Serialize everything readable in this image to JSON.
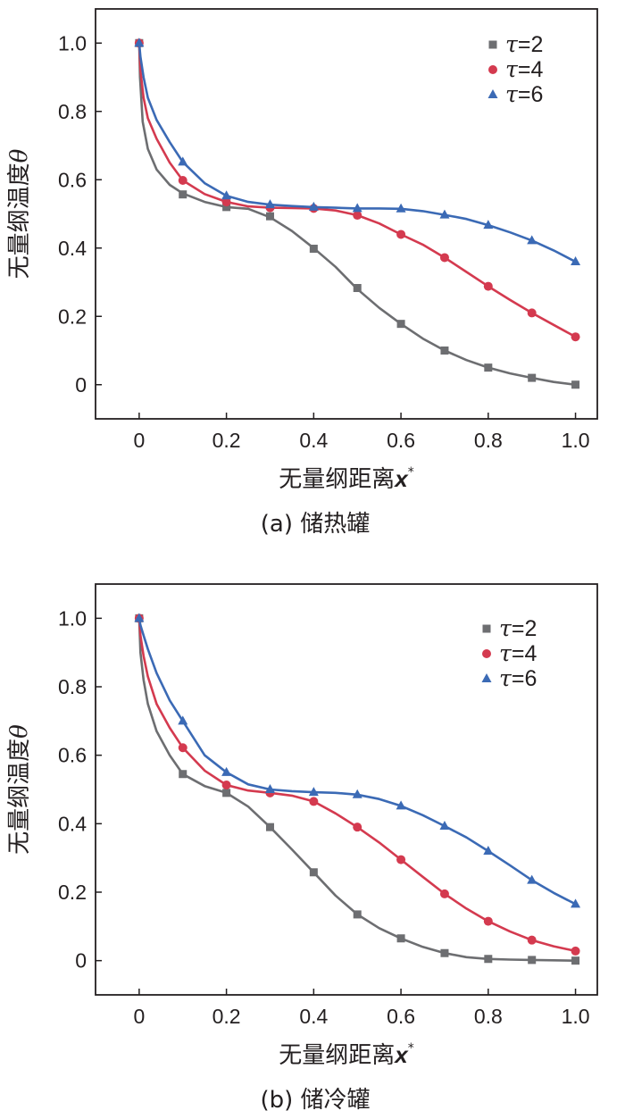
{
  "chart_data": [
    {
      "type": "line",
      "caption": "(a) 储热罐",
      "xlabel": "无量纲距离",
      "xlabel_var": "x",
      "xlabel_sup": "*",
      "ylabel": "无量纲温度",
      "ylabel_var": "θ",
      "xlim": [
        -0.1,
        1.05
      ],
      "ylim": [
        -0.1,
        1.1
      ],
      "xticks": [
        0,
        0.2,
        0.4,
        0.6,
        0.8,
        1.0
      ],
      "xtick_labels": [
        "0",
        "0.2",
        "0.4",
        "0.6",
        "0.8",
        "1.0"
      ],
      "yticks": [
        0,
        0.2,
        0.4,
        0.6,
        0.8,
        1.0
      ],
      "ytick_labels": [
        "0",
        "0.2",
        "0.4",
        "0.6",
        "0.8",
        "1.0"
      ],
      "legend_position": "top-right",
      "series": [
        {
          "name": "τ=2",
          "name_var": "τ",
          "name_val": "=2",
          "color": "#6d6e71",
          "marker": "square",
          "curve_x": [
            0,
            0.002,
            0.008,
            0.02,
            0.04,
            0.07,
            0.1,
            0.15,
            0.2,
            0.25,
            0.3,
            0.35,
            0.4,
            0.45,
            0.5,
            0.55,
            0.6,
            0.65,
            0.7,
            0.75,
            0.8,
            0.85,
            0.9,
            0.95,
            1.0
          ],
          "curve_y": [
            1.0,
            0.9,
            0.77,
            0.69,
            0.63,
            0.585,
            0.56,
            0.535,
            0.52,
            0.515,
            0.49,
            0.45,
            0.4,
            0.345,
            0.28,
            0.225,
            0.178,
            0.135,
            0.1,
            0.072,
            0.05,
            0.033,
            0.02,
            0.008,
            0.0
          ],
          "marker_x": [
            0,
            0.1,
            0.2,
            0.3,
            0.4,
            0.5,
            0.6,
            0.7,
            0.8,
            0.9,
            1.0
          ],
          "marker_y": [
            1.0,
            0.557,
            0.52,
            0.493,
            0.398,
            0.283,
            0.178,
            0.1,
            0.05,
            0.02,
            0.0
          ]
        },
        {
          "name": "τ=4",
          "name_var": "τ",
          "name_val": "=4",
          "color": "#d43a4f",
          "marker": "circle",
          "curve_x": [
            0,
            0.003,
            0.01,
            0.02,
            0.04,
            0.07,
            0.1,
            0.15,
            0.2,
            0.25,
            0.3,
            0.35,
            0.4,
            0.45,
            0.5,
            0.55,
            0.6,
            0.65,
            0.7,
            0.75,
            0.8,
            0.85,
            0.9,
            0.95,
            1.0
          ],
          "curve_y": [
            1.0,
            0.92,
            0.84,
            0.78,
            0.72,
            0.65,
            0.598,
            0.558,
            0.535,
            0.522,
            0.518,
            0.517,
            0.516,
            0.51,
            0.496,
            0.472,
            0.44,
            0.41,
            0.372,
            0.33,
            0.288,
            0.248,
            0.21,
            0.175,
            0.14
          ]
        },
        {
          "name": "τ=6",
          "name_var": "τ",
          "name_val": "=6",
          "color": "#3b6ab5",
          "marker": "triangle",
          "curve_x": [
            0,
            0.003,
            0.01,
            0.02,
            0.04,
            0.07,
            0.1,
            0.15,
            0.2,
            0.25,
            0.3,
            0.35,
            0.4,
            0.45,
            0.5,
            0.55,
            0.6,
            0.65,
            0.7,
            0.75,
            0.8,
            0.85,
            0.9,
            0.95,
            1.0
          ],
          "curve_y": [
            1.0,
            0.96,
            0.9,
            0.84,
            0.775,
            0.71,
            0.652,
            0.59,
            0.553,
            0.535,
            0.527,
            0.523,
            0.52,
            0.518,
            0.516,
            0.516,
            0.515,
            0.508,
            0.497,
            0.485,
            0.467,
            0.446,
            0.422,
            0.393,
            0.36
          ]
        }
      ]
    },
    {
      "type": "line",
      "caption": "(b) 储冷罐",
      "xlabel": "无量纲距离",
      "xlabel_var": "x",
      "xlabel_sup": "*",
      "ylabel": "无量纲温度",
      "ylabel_var": "θ",
      "xlim": [
        -0.1,
        1.05
      ],
      "ylim": [
        -0.1,
        1.1
      ],
      "xticks": [
        0,
        0.2,
        0.4,
        0.6,
        0.8,
        1.0
      ],
      "xtick_labels": [
        "0",
        "0.2",
        "0.4",
        "0.6",
        "0.8",
        "1.0"
      ],
      "yticks": [
        0,
        0.2,
        0.4,
        0.6,
        0.8,
        1.0
      ],
      "ytick_labels": [
        "0",
        "0.2",
        "0.4",
        "0.6",
        "0.8",
        "1.0"
      ],
      "legend_position": "top-right",
      "series": [
        {
          "name": "τ=2",
          "name_var": "τ",
          "name_val": "=2",
          "color": "#6d6e71",
          "marker": "square",
          "curve_x": [
            0,
            0.003,
            0.01,
            0.02,
            0.04,
            0.07,
            0.1,
            0.15,
            0.2,
            0.25,
            0.3,
            0.35,
            0.4,
            0.45,
            0.5,
            0.55,
            0.6,
            0.65,
            0.7,
            0.75,
            0.8,
            0.85,
            0.9,
            0.95,
            1.0
          ],
          "curve_y": [
            1.0,
            0.9,
            0.82,
            0.75,
            0.67,
            0.6,
            0.545,
            0.51,
            0.49,
            0.45,
            0.39,
            0.325,
            0.258,
            0.19,
            0.135,
            0.095,
            0.065,
            0.04,
            0.022,
            0.01,
            0.005,
            0.003,
            0.002,
            0.001,
            0.0
          ],
          "marker_x": [
            0,
            0.1,
            0.2,
            0.3,
            0.4,
            0.5,
            0.6,
            0.7,
            0.8,
            0.9,
            1.0
          ],
          "marker_y": [
            1.0,
            0.545,
            0.49,
            0.39,
            0.258,
            0.135,
            0.065,
            0.022,
            0.005,
            0.002,
            0.0
          ]
        },
        {
          "name": "τ=4",
          "name_var": "τ",
          "name_val": "=4",
          "color": "#d43a4f",
          "marker": "circle",
          "curve_x": [
            0,
            0.003,
            0.01,
            0.02,
            0.04,
            0.07,
            0.1,
            0.15,
            0.2,
            0.25,
            0.3,
            0.35,
            0.4,
            0.45,
            0.5,
            0.55,
            0.6,
            0.65,
            0.7,
            0.75,
            0.8,
            0.85,
            0.9,
            0.95,
            1.0
          ],
          "curve_y": [
            1.0,
            0.95,
            0.89,
            0.83,
            0.75,
            0.68,
            0.622,
            0.555,
            0.513,
            0.497,
            0.49,
            0.482,
            0.465,
            0.43,
            0.39,
            0.345,
            0.295,
            0.245,
            0.195,
            0.152,
            0.115,
            0.085,
            0.06,
            0.042,
            0.028
          ]
        },
        {
          "name": "τ=6",
          "name_var": "τ",
          "name_val": "=6",
          "color": "#3b6ab5",
          "marker": "triangle",
          "curve_x": [
            0,
            0.003,
            0.01,
            0.02,
            0.04,
            0.07,
            0.1,
            0.15,
            0.2,
            0.25,
            0.3,
            0.35,
            0.4,
            0.45,
            0.5,
            0.55,
            0.6,
            0.65,
            0.7,
            0.75,
            0.8,
            0.85,
            0.9,
            0.95,
            1.0
          ],
          "curve_y": [
            1.0,
            0.98,
            0.95,
            0.91,
            0.84,
            0.76,
            0.7,
            0.6,
            0.55,
            0.515,
            0.5,
            0.495,
            0.492,
            0.49,
            0.485,
            0.472,
            0.452,
            0.425,
            0.393,
            0.36,
            0.32,
            0.278,
            0.235,
            0.198,
            0.165
          ]
        }
      ]
    }
  ]
}
